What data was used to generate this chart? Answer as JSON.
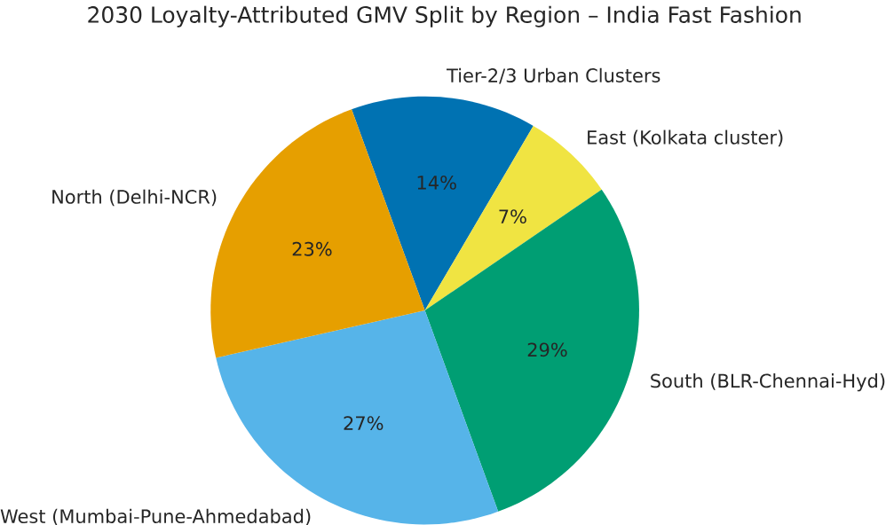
{
  "chart_data": {
    "type": "pie",
    "title": "2030 Loyalty-Attributed GMV Split by Region – India Fast Fashion",
    "categories": [
      "Tier-2/3 Urban Clusters",
      "East (Kolkata cluster)",
      "South (BLR-Chennai-Hyd)",
      "West (Mumbai-Pune-Ahmedabad)",
      "North (Delhi-NCR)"
    ],
    "values": [
      14,
      7,
      29,
      27,
      23
    ],
    "colors": [
      "#0072b2",
      "#f0e442",
      "#009e73",
      "#56b4e9",
      "#e69f00"
    ],
    "value_labels": [
      "14%",
      "7%",
      "29%",
      "27%",
      "23%"
    ]
  }
}
